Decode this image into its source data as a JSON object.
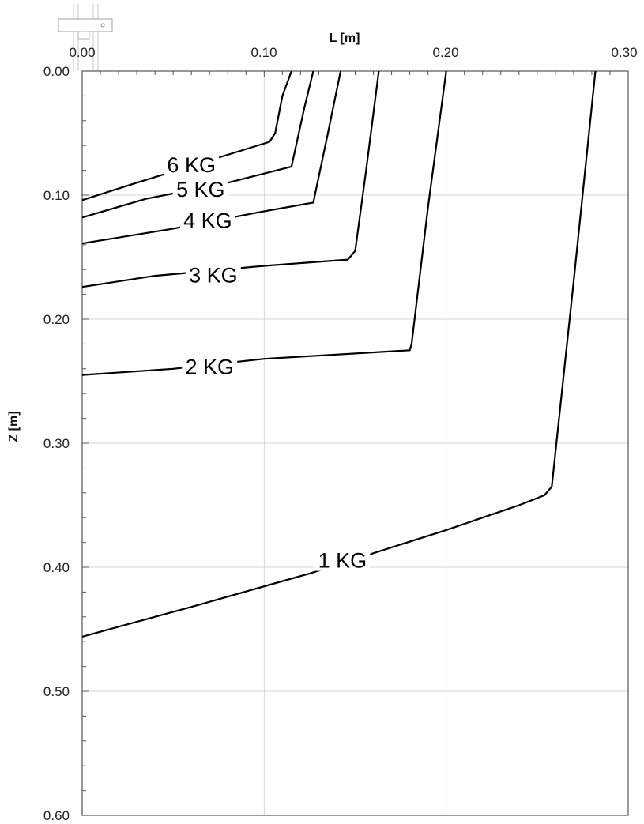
{
  "chart_data": {
    "type": "line",
    "title": "",
    "xlabel": "L [m]",
    "ylabel": "Z [m]",
    "xlim": [
      0.0,
      0.3
    ],
    "ylim": [
      0.0,
      0.6
    ],
    "x_axis_position": "top",
    "y_axis_inverted": true,
    "grid": true,
    "x_ticks": [
      "0.00",
      "0.10",
      "0.20",
      "0.30"
    ],
    "y_ticks": [
      "0.00",
      "0.10",
      "0.20",
      "0.30",
      "0.40",
      "0.50",
      "0.60"
    ],
    "series": [
      {
        "name": "6 KG",
        "points": [
          [
            0.0,
            0.104
          ],
          [
            0.03,
            0.09
          ],
          [
            0.07,
            0.072
          ],
          [
            0.103,
            0.057
          ],
          [
            0.106,
            0.05
          ],
          [
            0.11,
            0.02
          ],
          [
            0.115,
            0.0
          ]
        ],
        "label_at": [
          0.06,
          0.075
        ]
      },
      {
        "name": "5 KG",
        "points": [
          [
            0.0,
            0.118
          ],
          [
            0.035,
            0.103
          ],
          [
            0.08,
            0.09
          ],
          [
            0.115,
            0.077
          ],
          [
            0.122,
            0.03
          ],
          [
            0.127,
            0.0
          ]
        ],
        "label_at": [
          0.065,
          0.095
        ]
      },
      {
        "name": "4 KG",
        "points": [
          [
            0.0,
            0.139
          ],
          [
            0.05,
            0.127
          ],
          [
            0.1,
            0.113
          ],
          [
            0.127,
            0.106
          ],
          [
            0.135,
            0.05
          ],
          [
            0.142,
            0.0
          ]
        ],
        "label_at": [
          0.069,
          0.12
        ]
      },
      {
        "name": "3 KG",
        "points": [
          [
            0.0,
            0.174
          ],
          [
            0.04,
            0.165
          ],
          [
            0.1,
            0.157
          ],
          [
            0.146,
            0.152
          ],
          [
            0.15,
            0.145
          ],
          [
            0.156,
            0.08
          ],
          [
            0.163,
            0.0
          ]
        ],
        "label_at": [
          0.072,
          0.164
        ]
      },
      {
        "name": "2 KG",
        "points": [
          [
            0.0,
            0.245
          ],
          [
            0.05,
            0.24
          ],
          [
            0.1,
            0.232
          ],
          [
            0.18,
            0.225
          ],
          [
            0.181,
            0.22
          ],
          [
            0.19,
            0.11
          ],
          [
            0.2,
            0.0
          ]
        ],
        "label_at": [
          0.07,
          0.238
        ]
      },
      {
        "name": "1 KG",
        "points": [
          [
            0.0,
            0.456
          ],
          [
            0.06,
            0.432
          ],
          [
            0.125,
            0.405
          ],
          [
            0.2,
            0.37
          ],
          [
            0.24,
            0.35
          ],
          [
            0.254,
            0.342
          ],
          [
            0.258,
            0.335
          ],
          [
            0.27,
            0.17
          ],
          [
            0.282,
            0.0
          ]
        ],
        "label_at": [
          0.143,
          0.394
        ]
      }
    ]
  },
  "annotations": {
    "legend_icon": "slider-widget-icon"
  }
}
